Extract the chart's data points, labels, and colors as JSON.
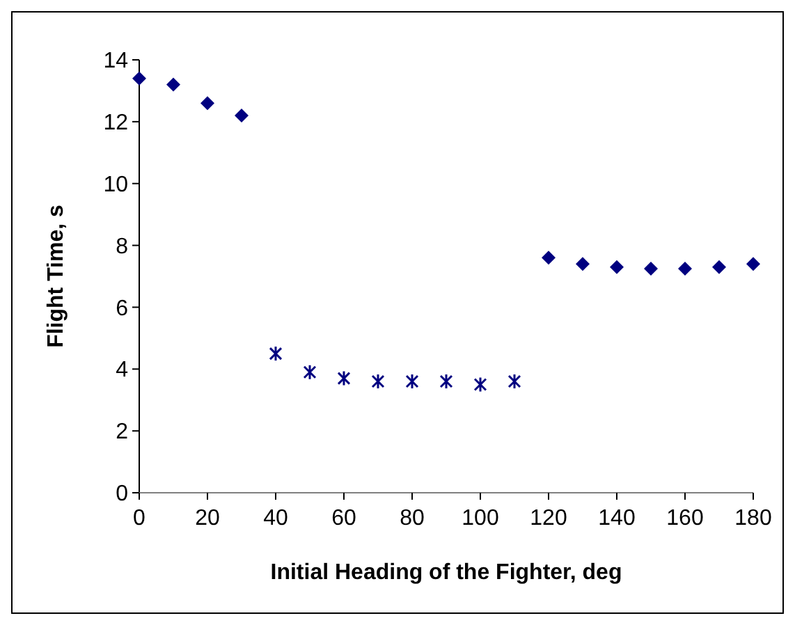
{
  "chart_data": {
    "type": "scatter",
    "xlabel": "Initial Heading of the Fighter, deg",
    "ylabel": "Flight Time, s",
    "xlim": [
      0,
      180
    ],
    "xticks": [
      0,
      20,
      40,
      60,
      80,
      100,
      120,
      140,
      160,
      180
    ],
    "ylim": [
      0,
      14
    ],
    "yticks": [
      0,
      2,
      4,
      6,
      8,
      10,
      12,
      14
    ],
    "grid": false,
    "series": [
      {
        "color": "#000080",
        "marker": "diamond",
        "x": [
          0,
          10,
          20,
          30,
          120,
          130,
          140,
          150,
          160,
          170,
          180
        ],
        "values": [
          13.4,
          13.2,
          12.6,
          12.2,
          7.6,
          7.4,
          7.3,
          7.25,
          7.25,
          7.3,
          7.4
        ]
      },
      {
        "color": "#000080",
        "marker": "cross",
        "x": [
          40,
          50,
          60,
          70,
          80,
          90,
          100,
          110
        ],
        "values": [
          4.5,
          3.9,
          3.7,
          3.6,
          3.6,
          3.6,
          3.5,
          3.6
        ]
      }
    ]
  }
}
